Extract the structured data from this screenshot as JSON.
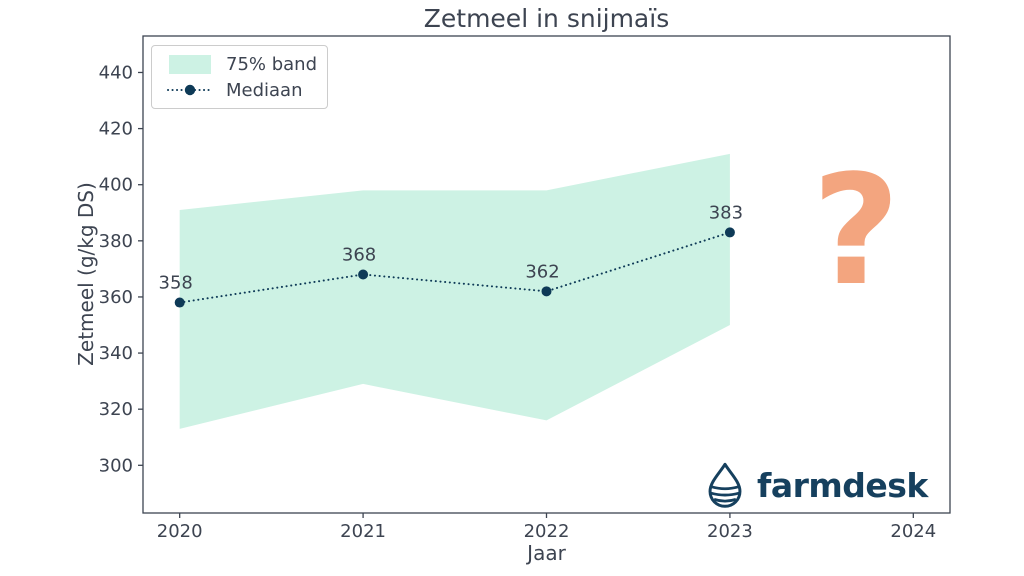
{
  "annotation": {
    "text": "?"
  },
  "logo": {
    "text": "farmdesk"
  },
  "colors": {
    "band": "#cdf2e4",
    "median": "#0e3a57",
    "text": "#3d4451",
    "spine": "#3d4451",
    "annotation": "#f3a57f",
    "logo": "#16405e",
    "legend_border": "#cccccc"
  },
  "chart_data": {
    "type": "line",
    "title": "Zetmeel in snijmaïs",
    "xlabel": "Jaar",
    "ylabel": "Zetmeel (g/kg DS)",
    "x": [
      2020,
      2021,
      2022,
      2023
    ],
    "series": [
      {
        "name": "75% band",
        "type": "band",
        "upper": [
          391,
          398,
          398,
          411
        ],
        "lower": [
          313,
          329,
          316,
          350
        ]
      },
      {
        "name": "Mediaan",
        "type": "line",
        "values": [
          358,
          368,
          362,
          383
        ],
        "point_labels": [
          "358",
          "368",
          "362",
          "383"
        ]
      }
    ],
    "xticks": [
      "2020",
      "2021",
      "2022",
      "2023",
      "2024"
    ],
    "xtick_values": [
      2020,
      2021,
      2022,
      2023,
      2024
    ],
    "yticks": [
      "300",
      "320",
      "340",
      "360",
      "380",
      "400",
      "420",
      "440"
    ],
    "ytick_values": [
      300,
      320,
      340,
      360,
      380,
      400,
      420,
      440
    ],
    "xlim": [
      2019.8,
      2024.2
    ],
    "ylim": [
      283,
      453
    ],
    "legend_position": "upper left",
    "grid": false
  }
}
